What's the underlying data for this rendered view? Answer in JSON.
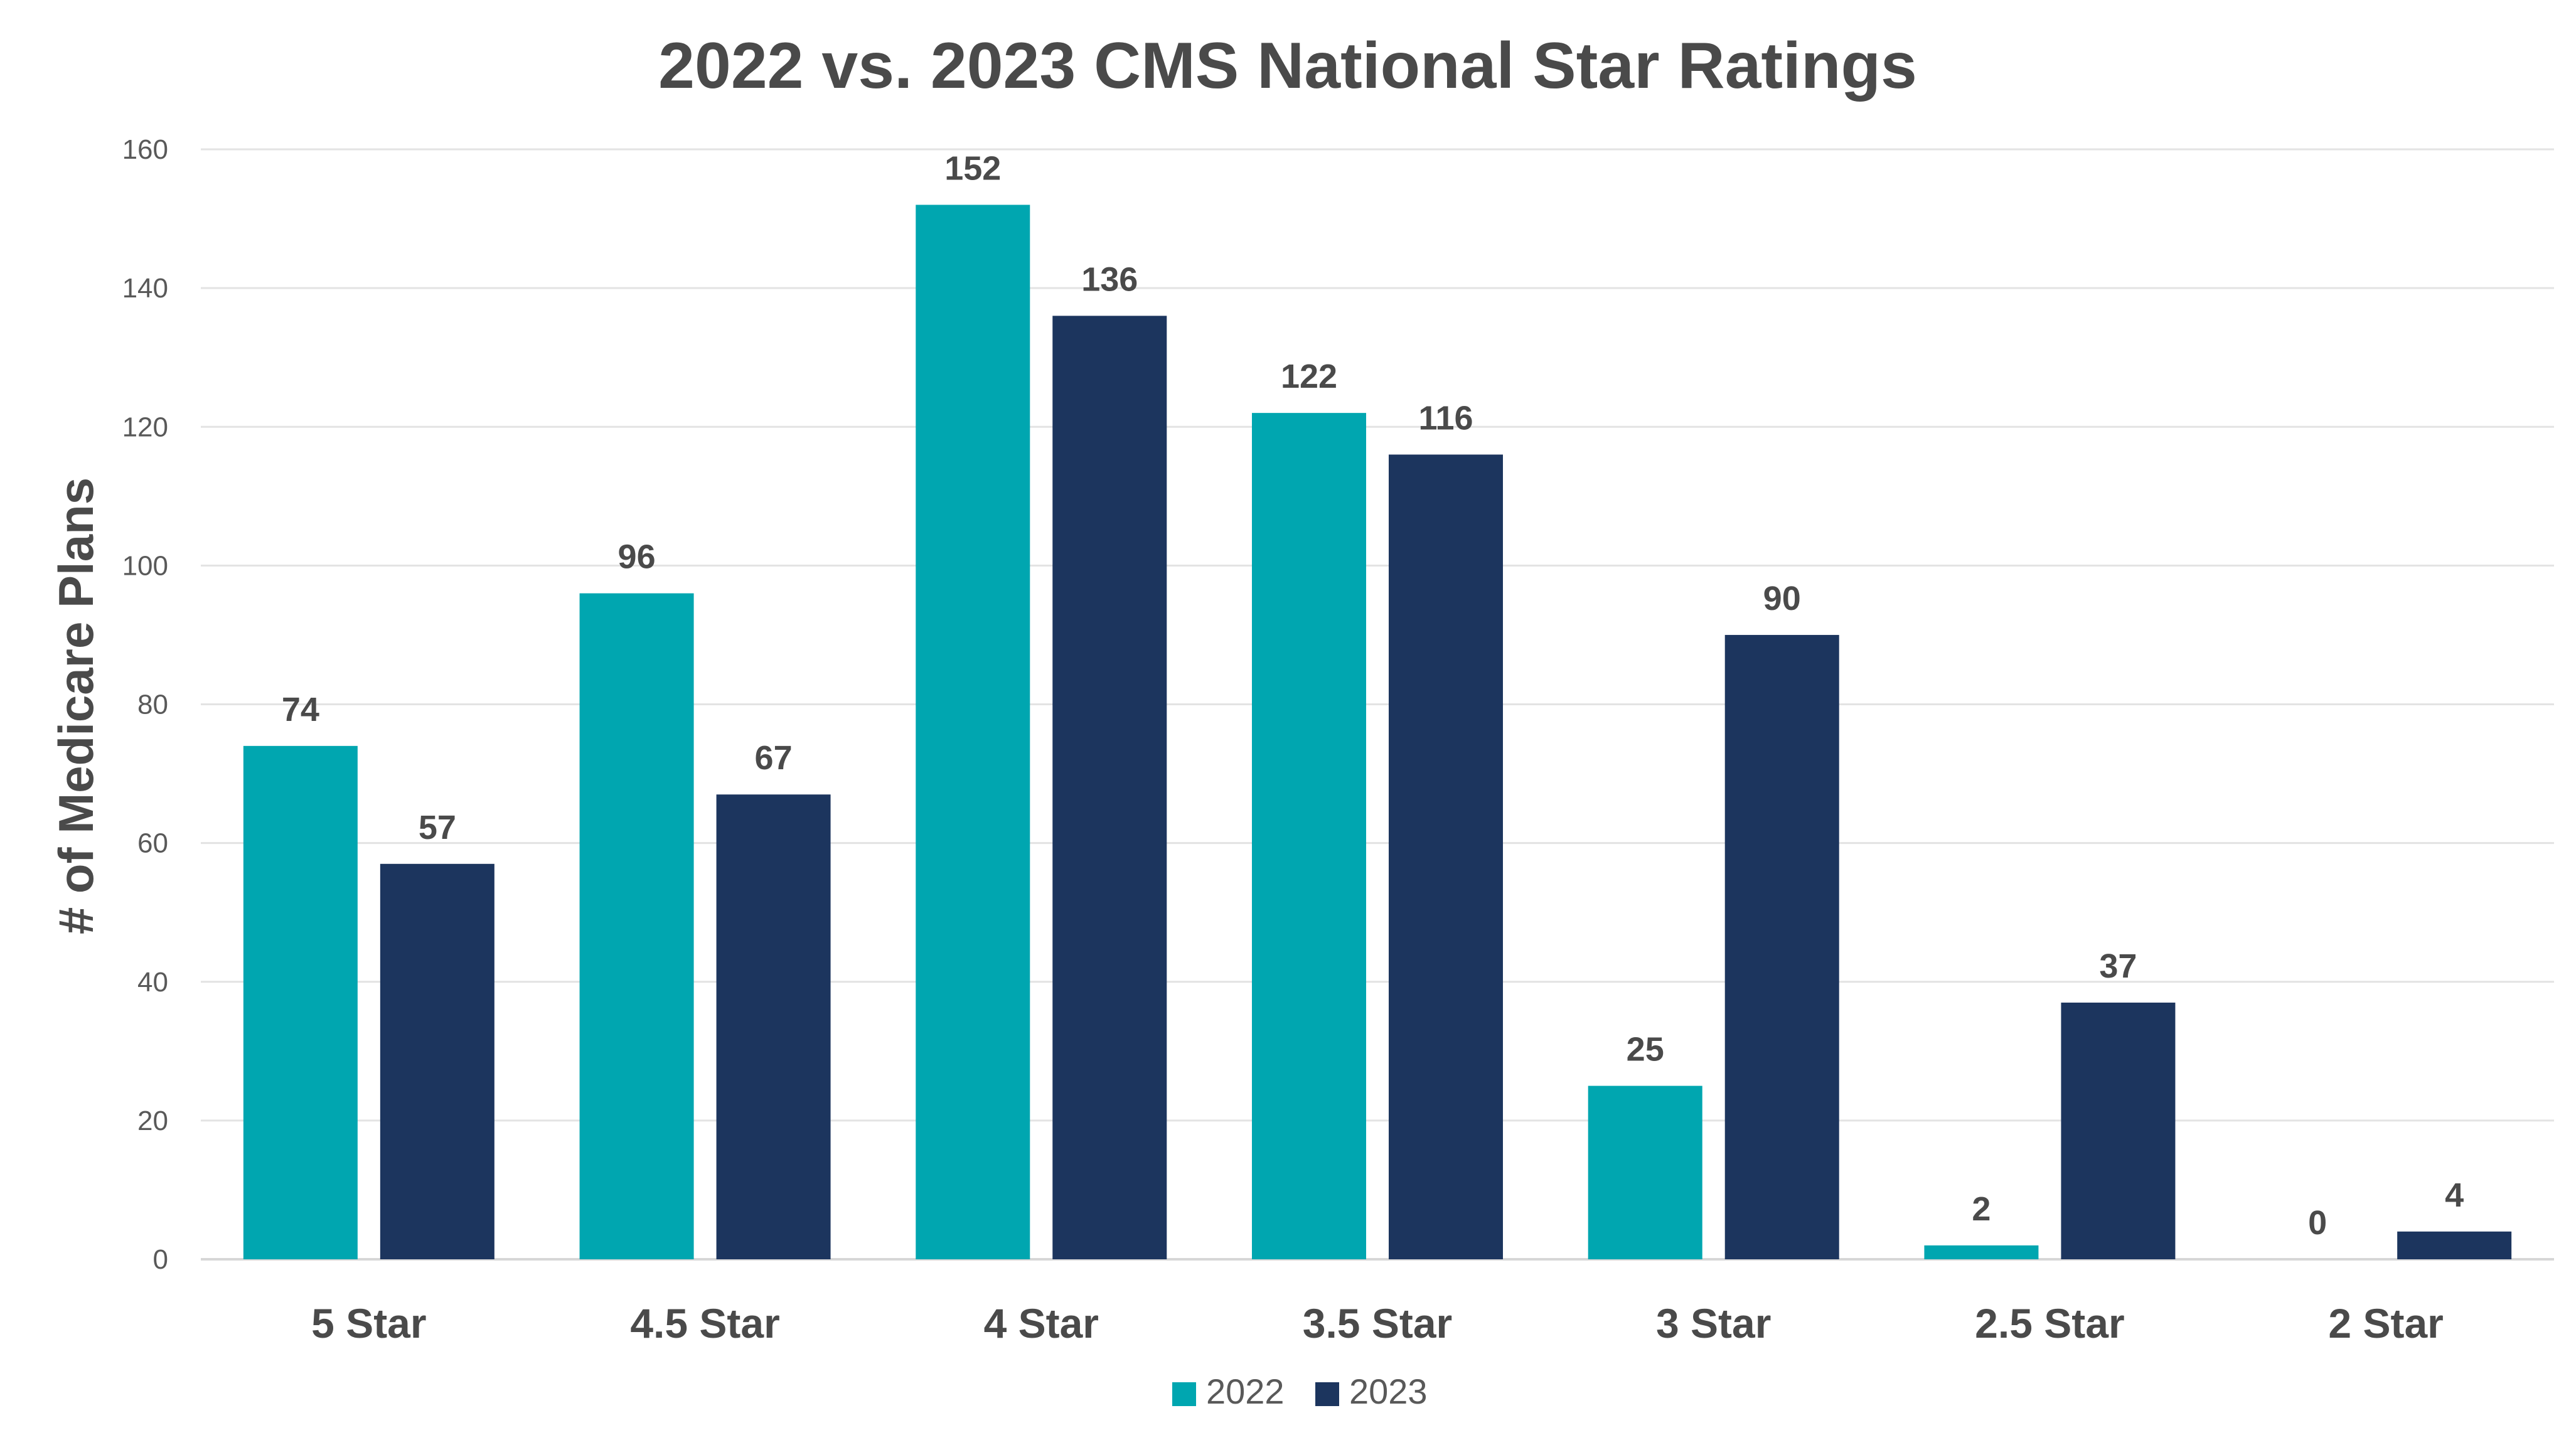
{
  "chart_data": {
    "type": "bar",
    "title": "2022 vs. 2023 CMS National Star Ratings",
    "xlabel": "",
    "ylabel": "# of Medicare Plans",
    "ylim": [
      0,
      160
    ],
    "yticks": [
      0,
      20,
      40,
      60,
      80,
      100,
      120,
      140,
      160
    ],
    "grid": true,
    "legend_position": "bottom",
    "categories": [
      "5 Star",
      "4.5 Star",
      "4 Star",
      "3.5 Star",
      "3 Star",
      "2.5 Star",
      "2 Star"
    ],
    "series": [
      {
        "name": "2022",
        "color": "#00A6B0",
        "values": [
          74,
          96,
          152,
          122,
          25,
          2,
          0
        ]
      },
      {
        "name": "2023",
        "color": "#1C355E",
        "values": [
          57,
          67,
          136,
          116,
          90,
          37,
          4
        ]
      }
    ]
  }
}
